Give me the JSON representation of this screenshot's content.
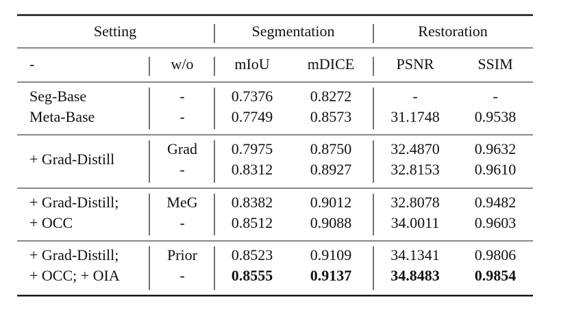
{
  "header": {
    "groups": [
      "Setting",
      "Segmentation",
      "Restoration"
    ],
    "columns": [
      "-",
      "w/o",
      "mIoU",
      "mDICE",
      "PSNR",
      "SSIM"
    ]
  },
  "groups": [
    {
      "setting": [
        "Seg-Base",
        "Meta-Base"
      ],
      "rows": [
        [
          "-",
          "0.7376",
          "0.8272",
          "-",
          "-"
        ],
        [
          "-",
          "0.7749",
          "0.8573",
          "31.1748",
          "0.9538"
        ]
      ]
    },
    {
      "setting": [
        "+ Grad-Distill"
      ],
      "rows": [
        [
          "Grad",
          "0.7975",
          "0.8750",
          "32.4870",
          "0.9632"
        ],
        [
          "-",
          "0.8312",
          "0.8927",
          "32.8153",
          "0.9610"
        ]
      ]
    },
    {
      "setting": [
        "+ Grad-Distill;",
        "+ OCC"
      ],
      "rows": [
        [
          "MeG",
          "0.8382",
          "0.9012",
          "32.8078",
          "0.9482"
        ],
        [
          "-",
          "0.8512",
          "0.9088",
          "34.0011",
          "0.9603"
        ]
      ]
    },
    {
      "setting": [
        "+ Grad-Distill;",
        "+ OCC; + OIA"
      ],
      "rows": [
        [
          "Prior",
          "0.8523",
          "0.9109",
          "34.1341",
          "0.9806"
        ],
        [
          "-",
          "0.8555",
          "0.9137",
          "34.8483",
          "0.9854"
        ]
      ]
    }
  ]
}
